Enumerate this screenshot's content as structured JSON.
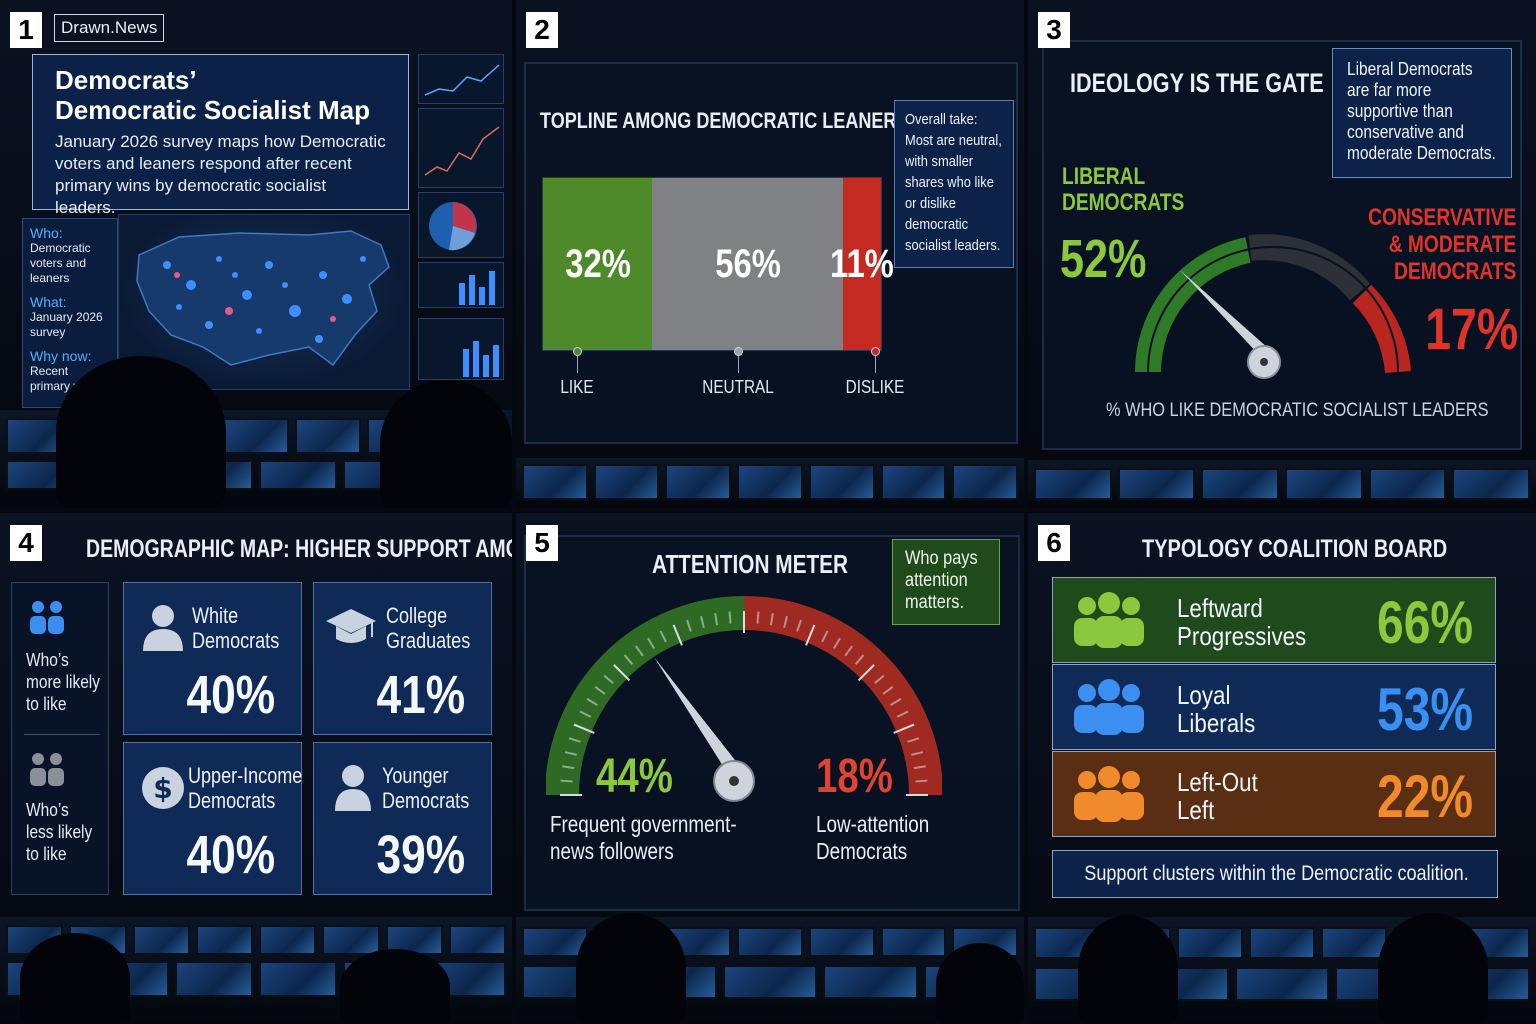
{
  "panels": {
    "p1": {
      "number": "1",
      "tag": "Drawn.News",
      "title_line1": "Democrats’",
      "title_line2": "Democratic Socialist Map",
      "subtitle": "January 2026 survey maps how Democratic voters and leaners respond after recent primary wins by democratic socialist leaders.",
      "who_label": "Who:",
      "who_value": "Democratic voters and leaners",
      "what_label": "What:",
      "what_value": "January 2026 survey",
      "why_label": "Why now:",
      "why_value": "Recent primary wins"
    },
    "p2": {
      "number": "2",
      "title": "TOPLINE AMONG DEMOCRATIC LEANERS",
      "take_lines": [
        "Overall take:",
        "Most are neutral,",
        "with smaller",
        "shares who like",
        "or dislike",
        "democratic",
        "socialist leaders."
      ],
      "segments": [
        {
          "label": "LIKE",
          "value": 32,
          "display": "32%",
          "color": "#4f8a2a"
        },
        {
          "label": "NEUTRAL",
          "value": 56,
          "display": "56%",
          "color": "#808185"
        },
        {
          "label": "DISLIKE",
          "value": 11,
          "display": "11%",
          "color": "#c52a22"
        }
      ]
    },
    "p3": {
      "number": "3",
      "title": "IDEOLOGY IS THE GATE",
      "note_lines": [
        "Liberal Democrats",
        "are far more",
        "supportive than",
        "conservative and",
        "moderate Democrats."
      ],
      "left_label_line1": "LIBERAL",
      "left_label_line2": "DEMOCRATS",
      "left_value": "52%",
      "left_pct": 52,
      "right_label_line1": "CONSERVATIVE",
      "right_label_line2": "& MODERATE",
      "right_label_line3": "DEMOCRATS",
      "right_value": "17%",
      "right_pct": 17,
      "footer": "% WHO LIKE DEMOCRATIC SOCIALIST LEADERS",
      "colors": {
        "green": "#3f8a2c",
        "gray": "#2e3136",
        "red": "#c02a22"
      }
    },
    "p4": {
      "number": "4",
      "title": "DEMOGRAPHIC MAP: HIGHER SUPPORT AMONG",
      "legend_more": [
        "Who’s",
        "more likely",
        "to like"
      ],
      "legend_less": [
        "Who’s",
        "less likely",
        "to like"
      ],
      "cards": [
        {
          "line1": "White",
          "line2": "Democrats",
          "value": "40%",
          "icon": "person-icon"
        },
        {
          "line1": "College",
          "line2": "Graduates",
          "value": "41%",
          "icon": "graduation-cap-icon"
        },
        {
          "line1": "Upper-Income",
          "line2": "Democrats",
          "value": "40%",
          "icon": "dollar-icon"
        },
        {
          "line1": "Younger",
          "line2": "Democrats",
          "value": "39%",
          "icon": "person-icon"
        }
      ]
    },
    "p5": {
      "number": "5",
      "title": "ATTENTION METER",
      "note_lines": [
        "Who pays",
        "attention",
        "matters."
      ],
      "left_value": "44%",
      "left_pct": 44,
      "left_label_line1": "Frequent government-",
      "left_label_line2": "news followers",
      "right_value": "18%",
      "right_pct": 18,
      "right_label_line1": "Low-attention",
      "right_label_line2": "Democrats"
    },
    "p6": {
      "number": "6",
      "title": "TYPOLOGY COALITION BOARD",
      "bands": [
        {
          "line1": "Leftward",
          "line2": "Progressives",
          "value": "66%",
          "bg": "#1f4a1c",
          "color": "#8cc83e",
          "icon": "group-icon"
        },
        {
          "line1": "Loyal",
          "line2": "Liberals",
          "value": "53%",
          "bg": "#0f2a57",
          "color": "#3b8ff0",
          "icon": "group-icon"
        },
        {
          "line1": "Left-Out",
          "line2": "Left",
          "value": "22%",
          "bg": "#5a2e12",
          "color": "#f08a2a",
          "icon": "group-icon"
        }
      ],
      "footer": "Support clusters within the Democratic coalition."
    }
  }
}
